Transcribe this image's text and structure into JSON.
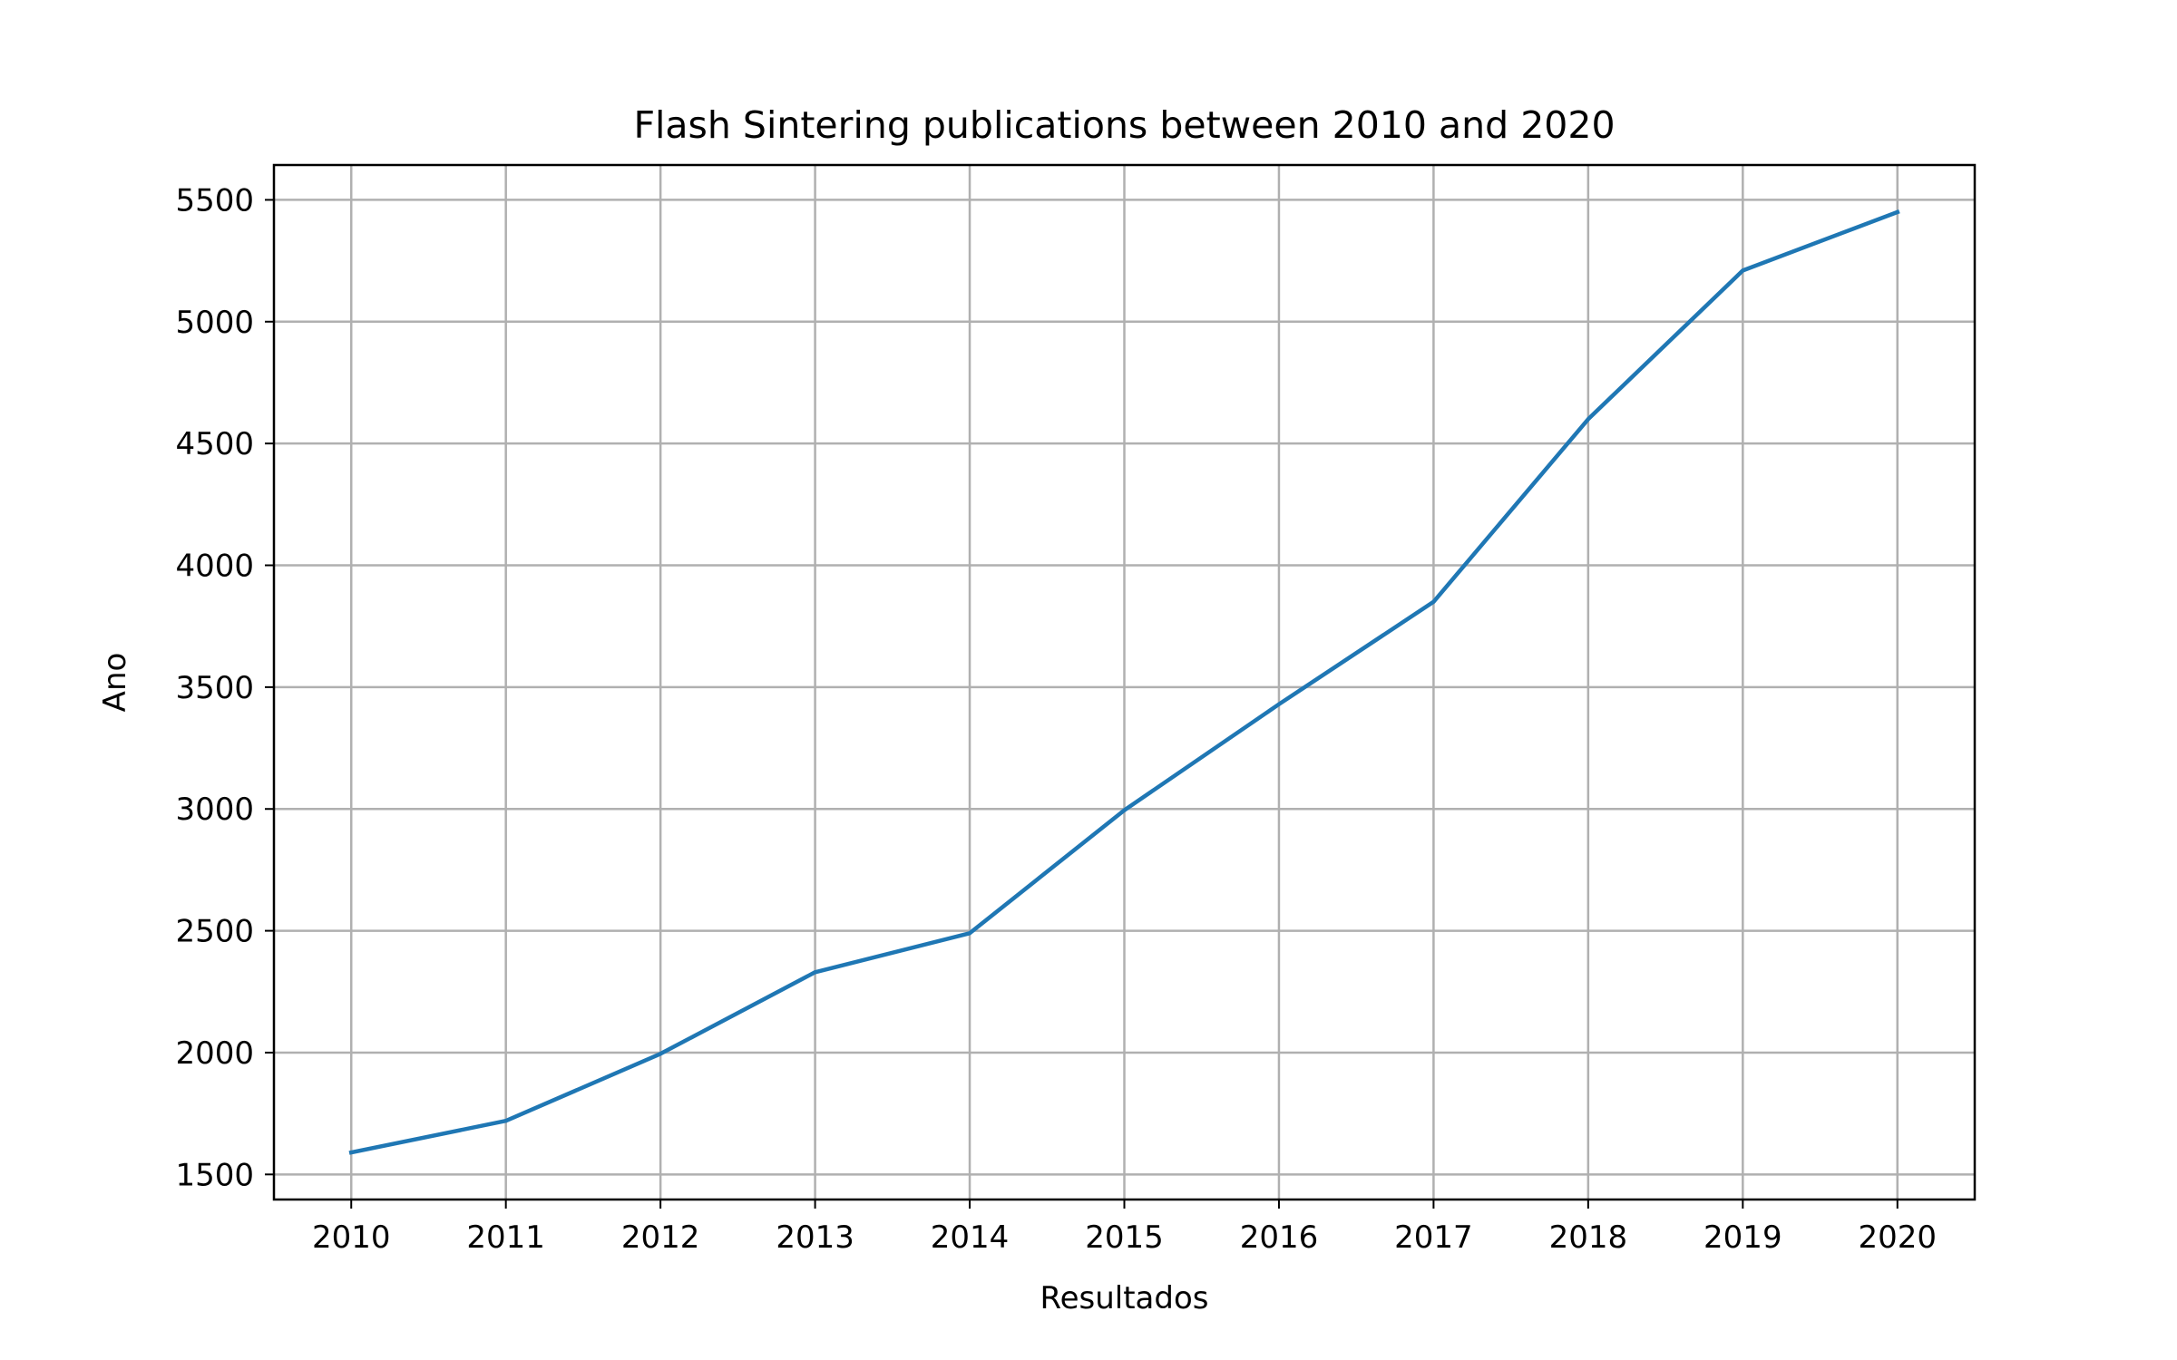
{
  "chart_data": {
    "type": "line",
    "title": "Flash Sintering publications between 2010 and 2020",
    "xlabel": "Resultados",
    "ylabel": "Ano",
    "x": [
      2010,
      2011,
      2012,
      2013,
      2014,
      2015,
      2016,
      2017,
      2018,
      2019,
      2020
    ],
    "series": [
      {
        "values": [
          1590,
          1720,
          1995,
          2330,
          2490,
          2995,
          3430,
          3850,
          4600,
          5210,
          5450
        ],
        "color": "#1f77b4"
      }
    ],
    "xlim": [
      2009.5,
      2020.5
    ],
    "ylim": [
      1397,
      5643
    ],
    "yticks": [
      1500,
      2000,
      2500,
      3000,
      3500,
      4000,
      4500,
      5000,
      5500
    ],
    "xticks": [
      2010,
      2011,
      2012,
      2013,
      2014,
      2015,
      2016,
      2017,
      2018,
      2019,
      2020
    ],
    "grid": true,
    "legend": "none"
  }
}
